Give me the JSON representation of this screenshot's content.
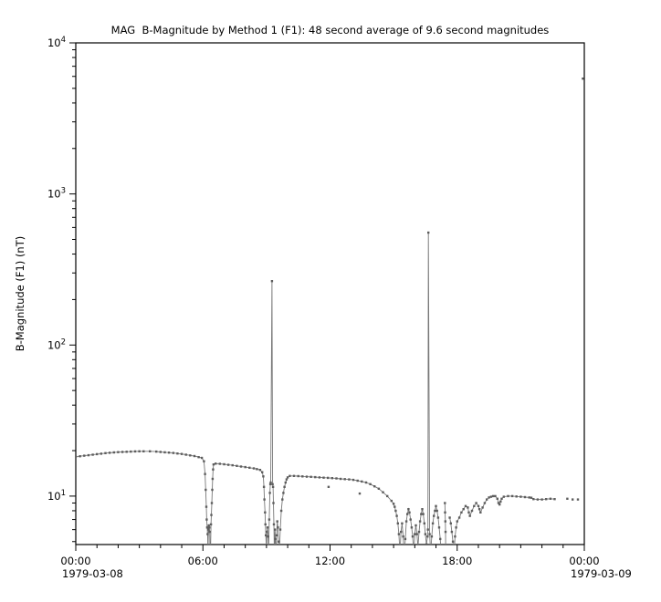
{
  "page": {
    "background": "#ffffff",
    "axis_color": "#000000",
    "text_color": "#000000"
  },
  "chart_data": {
    "type": "scatter",
    "title": "MAG  B-Magnitude by Method 1 (F1): 48 second average of 9.6 second magnitudes",
    "ylabel": "B-Magnitude (F1) (nT)",
    "legend": "none",
    "grid": false,
    "x_axis": {
      "range_hours": [
        0,
        24
      ],
      "major_hours": [
        0,
        6,
        12,
        18,
        24
      ],
      "major_labels": [
        "00:00",
        "06:00",
        "12:00",
        "18:00",
        "00:00"
      ],
      "minor_interval_hours": 1,
      "start_date": "1979-03-08",
      "end_date": "1979-03-09"
    },
    "y_axis": {
      "scale": "log",
      "min": 4.78,
      "max": 10000,
      "major_ticks": [
        10,
        100,
        1000,
        10000
      ],
      "major_label_base": "10",
      "major_label_exponents": [
        "1",
        "2",
        "3",
        "4"
      ]
    },
    "series": [
      {
        "name": "b-magnitude-f1",
        "marker": "square",
        "marker_color": "#5d5d5d",
        "line_color": "#787878",
        "segments": [
          [
            [
              0.0,
              18.2
            ],
            [
              0.2,
              18.35
            ],
            [
              0.4,
              18.5
            ],
            [
              0.6,
              18.65
            ],
            [
              0.8,
              18.8
            ],
            [
              1.0,
              18.95
            ],
            [
              1.2,
              19.1
            ],
            [
              1.4,
              19.25
            ],
            [
              1.6,
              19.35
            ],
            [
              1.8,
              19.45
            ],
            [
              2.0,
              19.55
            ],
            [
              2.2,
              19.6
            ],
            [
              2.4,
              19.65
            ],
            [
              2.6,
              19.7
            ],
            [
              2.8,
              19.75
            ],
            [
              3.0,
              19.8
            ],
            [
              3.2,
              19.8
            ],
            [
              3.5,
              19.8
            ],
            [
              3.8,
              19.7
            ],
            [
              4.0,
              19.6
            ],
            [
              4.2,
              19.5
            ],
            [
              4.4,
              19.4
            ],
            [
              4.6,
              19.3
            ],
            [
              4.8,
              19.15
            ],
            [
              5.0,
              19.0
            ],
            [
              5.2,
              18.8
            ],
            [
              5.4,
              18.6
            ],
            [
              5.6,
              18.4
            ],
            [
              5.8,
              18.1
            ],
            [
              5.95,
              17.9
            ],
            [
              6.05,
              17.0
            ],
            [
              6.1,
              14.0
            ],
            [
              6.13,
              11.0
            ],
            [
              6.16,
              8.5
            ],
            [
              6.18,
              7.0
            ],
            [
              6.2,
              6.2
            ],
            [
              6.22,
              5.6
            ],
            [
              6.24,
              4.2
            ],
            [
              6.26,
              6.0
            ],
            [
              6.28,
              6.4
            ],
            [
              6.3,
              6.2
            ],
            [
              6.32,
              5.8
            ],
            [
              6.34,
              4.0
            ],
            [
              6.36,
              4.3
            ],
            [
              6.38,
              6.5
            ],
            [
              6.4,
              7.5
            ],
            [
              6.42,
              9.0
            ],
            [
              6.44,
              11.0
            ],
            [
              6.46,
              13.0
            ],
            [
              6.48,
              15.0
            ],
            [
              6.5,
              16.2
            ],
            [
              6.6,
              16.4
            ],
            [
              6.8,
              16.35
            ],
            [
              7.0,
              16.25
            ],
            [
              7.2,
              16.1
            ],
            [
              7.4,
              16.0
            ],
            [
              7.6,
              15.85
            ],
            [
              7.8,
              15.7
            ],
            [
              8.0,
              15.55
            ],
            [
              8.2,
              15.4
            ],
            [
              8.4,
              15.25
            ],
            [
              8.55,
              15.1
            ],
            [
              8.7,
              14.9
            ],
            [
              8.8,
              14.4
            ],
            [
              8.85,
              13.5
            ],
            [
              8.88,
              11.5
            ],
            [
              8.9,
              9.5
            ],
            [
              8.93,
              7.8
            ],
            [
              8.95,
              6.5
            ],
            [
              8.97,
              5.5
            ],
            [
              9.0,
              4.2
            ],
            [
              9.02,
              5.8
            ],
            [
              9.05,
              6.2
            ],
            [
              9.08,
              5.4
            ],
            [
              9.1,
              4.0
            ],
            [
              9.13,
              7.0
            ],
            [
              9.16,
              10.5
            ],
            [
              9.18,
              12.0
            ],
            [
              9.2,
              12.3
            ],
            [
              9.26,
              265
            ],
            [
              9.29,
              12.0
            ],
            [
              9.31,
              11.5
            ],
            [
              9.33,
              9.0
            ],
            [
              9.35,
              6.5
            ],
            [
              9.37,
              4.2
            ],
            [
              9.4,
              6.0
            ],
            [
              9.42,
              5.2
            ],
            [
              9.45,
              4.0
            ],
            [
              9.48,
              5.5
            ],
            [
              9.51,
              6.8
            ],
            [
              9.54,
              6.2
            ],
            [
              9.57,
              5.0
            ],
            [
              9.6,
              4.1
            ],
            [
              9.65,
              6.0
            ],
            [
              9.7,
              8.0
            ],
            [
              9.75,
              9.5
            ],
            [
              9.8,
              10.5
            ],
            [
              9.85,
              11.5
            ],
            [
              9.9,
              12.3
            ],
            [
              9.95,
              12.9
            ],
            [
              10.0,
              13.3
            ],
            [
              10.1,
              13.6
            ],
            [
              10.3,
              13.6
            ],
            [
              10.5,
              13.55
            ],
            [
              10.7,
              13.5
            ],
            [
              10.9,
              13.45
            ],
            [
              11.1,
              13.4
            ],
            [
              11.3,
              13.35
            ],
            [
              11.5,
              13.3
            ],
            [
              11.7,
              13.25
            ],
            [
              11.9,
              13.2
            ],
            [
              12.1,
              13.15
            ],
            [
              12.3,
              13.1
            ],
            [
              12.5,
              13.0
            ],
            [
              12.7,
              12.95
            ],
            [
              12.9,
              12.9
            ],
            [
              13.1,
              12.8
            ],
            [
              13.3,
              12.65
            ],
            [
              13.5,
              12.5
            ],
            [
              13.7,
              12.3
            ],
            [
              13.9,
              12.0
            ],
            [
              14.1,
              11.6
            ],
            [
              14.3,
              11.2
            ],
            [
              14.5,
              10.6
            ],
            [
              14.7,
              10.0
            ],
            [
              14.9,
              9.3
            ],
            [
              15.0,
              8.9
            ],
            [
              15.05,
              8.5
            ],
            [
              15.1,
              8.0
            ],
            [
              15.15,
              7.4
            ],
            [
              15.2,
              6.6
            ],
            [
              15.25,
              5.6
            ],
            [
              15.3,
              4.2
            ],
            [
              15.35,
              5.8
            ],
            [
              15.4,
              6.6
            ],
            [
              15.45,
              5.4
            ],
            [
              15.5,
              4.0
            ],
            [
              15.55,
              5.2
            ],
            [
              15.6,
              6.8
            ],
            [
              15.65,
              7.6
            ],
            [
              15.7,
              8.2
            ],
            [
              15.75,
              7.8
            ],
            [
              15.8,
              7.0
            ],
            [
              15.85,
              6.2
            ],
            [
              15.9,
              5.4
            ],
            [
              15.95,
              4.2
            ],
            [
              16.0,
              5.6
            ],
            [
              16.05,
              6.4
            ],
            [
              16.1,
              5.6
            ],
            [
              16.15,
              4.6
            ],
            [
              16.2,
              5.8
            ],
            [
              16.25,
              6.8
            ],
            [
              16.3,
              7.6
            ],
            [
              16.35,
              8.2
            ],
            [
              16.4,
              7.6
            ],
            [
              16.45,
              6.6
            ],
            [
              16.5,
              5.6
            ],
            [
              16.55,
              4.8
            ],
            [
              16.6,
              5.4
            ],
            [
              16.62,
              6.0
            ],
            [
              16.64,
              555
            ],
            [
              16.7,
              5.6
            ],
            [
              16.75,
              4.2
            ],
            [
              16.8,
              5.4
            ],
            [
              16.85,
              6.6
            ],
            [
              16.9,
              7.4
            ],
            [
              16.95,
              8.0
            ],
            [
              17.0,
              8.6
            ],
            [
              17.05,
              8.0
            ],
            [
              17.1,
              7.2
            ],
            [
              17.15,
              6.2
            ],
            [
              17.2,
              5.2
            ],
            [
              17.25,
              4.0
            ]
          ],
          [
            [
              17.42,
              9.0
            ],
            [
              17.43,
              7.8
            ],
            [
              17.44,
              6.8
            ],
            [
              17.45,
              5.8
            ],
            [
              17.46,
              4.2
            ]
          ],
          [
            [
              17.65,
              7.2
            ],
            [
              17.7,
              6.6
            ],
            [
              17.75,
              5.8
            ],
            [
              17.8,
              5.0
            ],
            [
              17.85,
              4.0
            ],
            [
              17.9,
              5.4
            ],
            [
              17.95,
              6.2
            ],
            [
              18.0,
              6.8
            ],
            [
              18.1,
              7.2
            ],
            [
              18.2,
              7.8
            ],
            [
              18.3,
              8.2
            ],
            [
              18.4,
              8.6
            ],
            [
              18.5,
              8.4
            ],
            [
              18.55,
              7.8
            ],
            [
              18.6,
              7.4
            ],
            [
              18.7,
              8.0
            ],
            [
              18.8,
              8.6
            ],
            [
              18.9,
              9.0
            ],
            [
              19.0,
              8.6
            ],
            [
              19.05,
              8.2
            ],
            [
              19.1,
              7.8
            ],
            [
              19.2,
              8.4
            ],
            [
              19.3,
              9.0
            ],
            [
              19.4,
              9.5
            ],
            [
              19.5,
              9.8
            ],
            [
              19.6,
              9.9
            ],
            [
              19.7,
              10.0
            ],
            [
              19.8,
              10.0
            ],
            [
              19.9,
              9.6
            ],
            [
              19.95,
              9.0
            ],
            [
              20.0,
              8.8
            ],
            [
              20.05,
              9.2
            ],
            [
              20.1,
              9.6
            ],
            [
              20.2,
              9.9
            ],
            [
              20.4,
              10.0
            ],
            [
              20.6,
              10.0
            ],
            [
              20.8,
              9.95
            ],
            [
              21.0,
              9.9
            ],
            [
              21.2,
              9.85
            ],
            [
              21.4,
              9.8
            ],
            [
              21.5,
              9.75
            ],
            [
              21.6,
              9.55
            ],
            [
              21.8,
              9.5
            ],
            [
              22.0,
              9.5
            ],
            [
              22.2,
              9.55
            ],
            [
              22.4,
              9.6
            ],
            [
              22.6,
              9.55
            ]
          ]
        ],
        "isolated_points": [
          [
            11.93,
            11.5
          ],
          [
            13.4,
            10.4
          ],
          [
            23.2,
            9.6
          ],
          [
            23.45,
            9.5
          ],
          [
            23.7,
            9.5
          ],
          [
            23.93,
            5800
          ]
        ]
      }
    ]
  }
}
